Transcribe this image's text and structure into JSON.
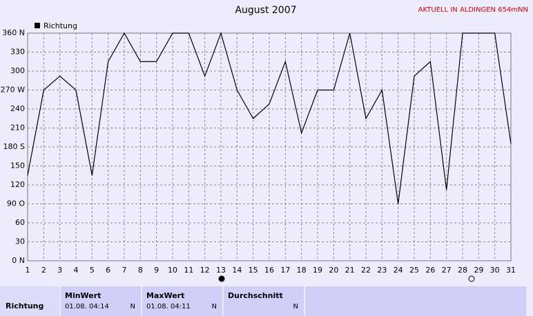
{
  "chart_data": {
    "type": "line",
    "title": "August 2007",
    "annotation": "AKTUELL IN ALDINGEN 654mNN",
    "x": [
      1,
      2,
      3,
      4,
      5,
      6,
      7,
      8,
      9,
      10,
      11,
      12,
      13,
      14,
      15,
      16,
      17,
      18,
      19,
      20,
      21,
      22,
      23,
      24,
      25,
      26,
      27,
      28,
      29,
      30,
      31
    ],
    "series": [
      {
        "name": "Richtung",
        "color": "#000000",
        "values": [
          135,
          270,
          292,
          270,
          135,
          315,
          360,
          315,
          315,
          360,
          360,
          292,
          360,
          270,
          225,
          248,
          315,
          202,
          270,
          270,
          360,
          225,
          270,
          90,
          292,
          315,
          112,
          360,
          360,
          360,
          185
        ]
      }
    ],
    "xlim": [
      1,
      31
    ],
    "xticks": [
      1,
      2,
      3,
      4,
      5,
      6,
      7,
      8,
      9,
      10,
      11,
      12,
      13,
      14,
      15,
      16,
      17,
      18,
      19,
      20,
      21,
      22,
      23,
      24,
      25,
      26,
      27,
      28,
      29,
      30,
      31
    ],
    "ylim": [
      0,
      360
    ],
    "yticks": [
      {
        "value": 0,
        "label": "0 N"
      },
      30,
      60,
      {
        "value": 90,
        "label": "90 O"
      },
      120,
      150,
      {
        "value": 180,
        "label": "180 S"
      },
      210,
      240,
      {
        "value": 270,
        "label": "270 W"
      },
      300,
      330,
      {
        "value": 360,
        "label": "360 N"
      }
    ],
    "grid": true,
    "legend": "top-left"
  },
  "stats": {
    "row_label": "Richtung",
    "columns": [
      {
        "header": "MinWert",
        "date": "01.08.  04:14",
        "value": "N"
      },
      {
        "header": "MaxWert",
        "date": "01.08.  04:11",
        "value": "N"
      },
      {
        "header": "Durchschnitt",
        "value": "N"
      }
    ]
  }
}
